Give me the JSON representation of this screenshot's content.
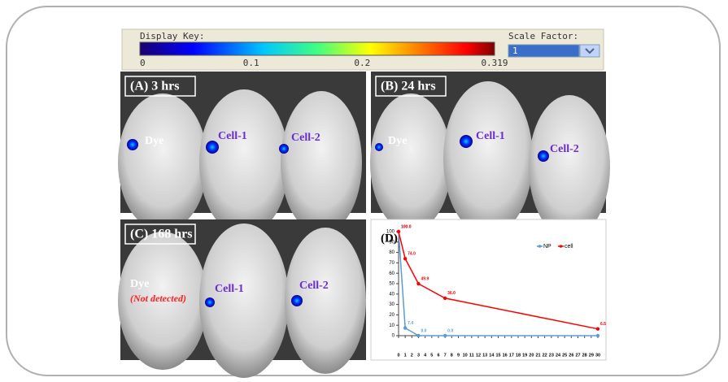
{
  "display_key": {
    "title": "Display Key:",
    "ticks": [
      0,
      0.1,
      0.2,
      0.319
    ],
    "scale_factor_label": "Scale Factor:",
    "scale_factor_value": "1"
  },
  "panels": [
    {
      "label": "(A) 3 hrs",
      "annotations": [
        "Dye",
        "Cell-1",
        "Cell-2"
      ]
    },
    {
      "label": "(B) 24 hrs",
      "annotations": [
        "Dye",
        "Cell-1",
        "Cell-2"
      ]
    },
    {
      "label": "(C) 168 hrs",
      "annotations": [
        "Dye",
        "(Not detected)",
        "Cell-1",
        "Cell-2"
      ]
    }
  ],
  "chart_data": {
    "type": "line",
    "label": "(D)",
    "x": [
      0,
      1,
      3,
      7,
      30
    ],
    "series": [
      {
        "name": "NP",
        "color": "#5b9bd5",
        "values": [
          100,
          7.4,
          0,
          0,
          0
        ],
        "value_labels": [
          "100.0",
          "7.4",
          "0.0",
          "0.0",
          null
        ]
      },
      {
        "name": "cell",
        "color": "#ff0000",
        "values": [
          100,
          74,
          49.9,
          36,
          6.5
        ],
        "value_labels": [
          "100.0",
          "74.0",
          "49.9",
          "36.0",
          "6.5"
        ]
      }
    ],
    "xlim": [
      0,
      30
    ],
    "xticks": [
      0,
      1,
      2,
      3,
      4,
      5,
      6,
      7,
      8,
      9,
      10,
      11,
      12,
      13,
      14,
      15,
      16,
      17,
      18,
      19,
      20,
      21,
      22,
      23,
      24,
      25,
      26,
      27,
      28,
      29,
      30
    ],
    "ylim": [
      0,
      100
    ],
    "yticks": [
      0,
      10,
      20,
      30,
      40,
      50,
      60,
      70,
      80,
      90,
      100
    ],
    "legend": "upper right"
  }
}
